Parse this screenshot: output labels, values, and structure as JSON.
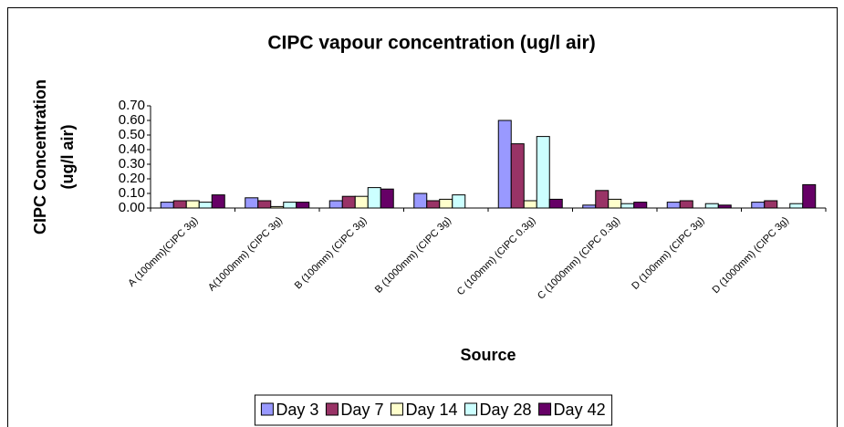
{
  "chart_data": {
    "type": "bar",
    "title": "CIPC vapour concentration (ug/l air)",
    "ylabel": [
      "CIPC Concentration",
      "(ug/l air)"
    ],
    "xlabel": "Source",
    "categories": [
      "A (100mm)(CIPC 3g)",
      "A(1000mm) (CIPC 3g)",
      "B (100mm) (CIPC 3g)",
      "B (1000mm) (CIPC 3g)",
      "C (100mm) (CIPC 0.3g)",
      "C (1000mm) (CIPC 0.3g)",
      "D (100mm) (CIPC 3g)",
      "D (1000mm) (CIPC 3g)"
    ],
    "series": [
      {
        "name": "Day 3",
        "color": "#9999ff",
        "values": [
          0.04,
          0.07,
          0.05,
          0.1,
          0.6,
          0.02,
          0.04,
          0.04
        ]
      },
      {
        "name": "Day 7",
        "color": "#993366",
        "values": [
          0.05,
          0.05,
          0.08,
          0.05,
          0.44,
          0.12,
          0.05,
          0.05
        ]
      },
      {
        "name": "Day 14",
        "color": "#ffffcc",
        "values": [
          0.05,
          0.01,
          0.08,
          0.06,
          0.05,
          0.06,
          null,
          null
        ]
      },
      {
        "name": "Day 28",
        "color": "#ccffff",
        "values": [
          0.04,
          0.04,
          0.14,
          0.09,
          0.49,
          0.03,
          0.03,
          0.03
        ]
      },
      {
        "name": "Day 42",
        "color": "#660066",
        "values": [
          0.09,
          0.04,
          0.13,
          null,
          0.06,
          0.04,
          0.02,
          0.16
        ]
      }
    ],
    "ylim": [
      0,
      0.7
    ],
    "yticks": [
      {
        "value": 0,
        "label": "0.00"
      },
      {
        "value": 0.1,
        "label": "0.10"
      },
      {
        "value": 0.2,
        "label": "0.20"
      },
      {
        "value": 0.3,
        "label": "0.30"
      },
      {
        "value": 0.4,
        "label": "0.40"
      },
      {
        "value": 0.5,
        "label": "0.50"
      },
      {
        "value": 0.6,
        "label": "0.60"
      },
      {
        "value": 0.7,
        "label": "0.70"
      }
    ],
    "legend": "bottom"
  }
}
